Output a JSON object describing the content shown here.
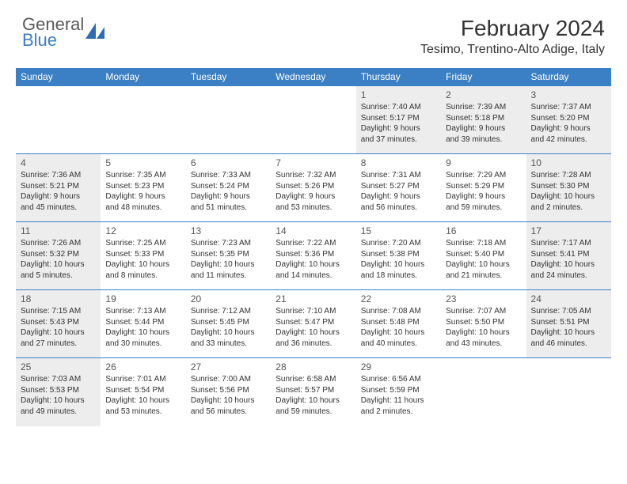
{
  "logo": {
    "line1": "General",
    "line2": "Blue",
    "icon_color": "#2f6db3"
  },
  "title": "February 2024",
  "location": "Tesimo, Trentino-Alto Adige, Italy",
  "theme": {
    "header_bg": "#3b7fc4",
    "gray_bg": "#ededed",
    "rule": "#3b7fc4"
  },
  "weekdays": [
    "Sunday",
    "Monday",
    "Tuesday",
    "Wednesday",
    "Thursday",
    "Friday",
    "Saturday"
  ],
  "weeks": [
    [
      null,
      null,
      null,
      null,
      {
        "n": "1",
        "gray": true,
        "sr": "Sunrise: 7:40 AM",
        "ss": "Sunset: 5:17 PM",
        "d1": "Daylight: 9 hours",
        "d2": "and 37 minutes."
      },
      {
        "n": "2",
        "gray": true,
        "sr": "Sunrise: 7:39 AM",
        "ss": "Sunset: 5:18 PM",
        "d1": "Daylight: 9 hours",
        "d2": "and 39 minutes."
      },
      {
        "n": "3",
        "gray": true,
        "sr": "Sunrise: 7:37 AM",
        "ss": "Sunset: 5:20 PM",
        "d1": "Daylight: 9 hours",
        "d2": "and 42 minutes."
      }
    ],
    [
      {
        "n": "4",
        "gray": true,
        "sr": "Sunrise: 7:36 AM",
        "ss": "Sunset: 5:21 PM",
        "d1": "Daylight: 9 hours",
        "d2": "and 45 minutes."
      },
      {
        "n": "5",
        "sr": "Sunrise: 7:35 AM",
        "ss": "Sunset: 5:23 PM",
        "d1": "Daylight: 9 hours",
        "d2": "and 48 minutes."
      },
      {
        "n": "6",
        "sr": "Sunrise: 7:33 AM",
        "ss": "Sunset: 5:24 PM",
        "d1": "Daylight: 9 hours",
        "d2": "and 51 minutes."
      },
      {
        "n": "7",
        "sr": "Sunrise: 7:32 AM",
        "ss": "Sunset: 5:26 PM",
        "d1": "Daylight: 9 hours",
        "d2": "and 53 minutes."
      },
      {
        "n": "8",
        "sr": "Sunrise: 7:31 AM",
        "ss": "Sunset: 5:27 PM",
        "d1": "Daylight: 9 hours",
        "d2": "and 56 minutes."
      },
      {
        "n": "9",
        "sr": "Sunrise: 7:29 AM",
        "ss": "Sunset: 5:29 PM",
        "d1": "Daylight: 9 hours",
        "d2": "and 59 minutes."
      },
      {
        "n": "10",
        "gray": true,
        "sr": "Sunrise: 7:28 AM",
        "ss": "Sunset: 5:30 PM",
        "d1": "Daylight: 10 hours",
        "d2": "and 2 minutes."
      }
    ],
    [
      {
        "n": "11",
        "gray": true,
        "sr": "Sunrise: 7:26 AM",
        "ss": "Sunset: 5:32 PM",
        "d1": "Daylight: 10 hours",
        "d2": "and 5 minutes."
      },
      {
        "n": "12",
        "sr": "Sunrise: 7:25 AM",
        "ss": "Sunset: 5:33 PM",
        "d1": "Daylight: 10 hours",
        "d2": "and 8 minutes."
      },
      {
        "n": "13",
        "sr": "Sunrise: 7:23 AM",
        "ss": "Sunset: 5:35 PM",
        "d1": "Daylight: 10 hours",
        "d2": "and 11 minutes."
      },
      {
        "n": "14",
        "sr": "Sunrise: 7:22 AM",
        "ss": "Sunset: 5:36 PM",
        "d1": "Daylight: 10 hours",
        "d2": "and 14 minutes."
      },
      {
        "n": "15",
        "sr": "Sunrise: 7:20 AM",
        "ss": "Sunset: 5:38 PM",
        "d1": "Daylight: 10 hours",
        "d2": "and 18 minutes."
      },
      {
        "n": "16",
        "sr": "Sunrise: 7:18 AM",
        "ss": "Sunset: 5:40 PM",
        "d1": "Daylight: 10 hours",
        "d2": "and 21 minutes."
      },
      {
        "n": "17",
        "gray": true,
        "sr": "Sunrise: 7:17 AM",
        "ss": "Sunset: 5:41 PM",
        "d1": "Daylight: 10 hours",
        "d2": "and 24 minutes."
      }
    ],
    [
      {
        "n": "18",
        "gray": true,
        "sr": "Sunrise: 7:15 AM",
        "ss": "Sunset: 5:43 PM",
        "d1": "Daylight: 10 hours",
        "d2": "and 27 minutes."
      },
      {
        "n": "19",
        "sr": "Sunrise: 7:13 AM",
        "ss": "Sunset: 5:44 PM",
        "d1": "Daylight: 10 hours",
        "d2": "and 30 minutes."
      },
      {
        "n": "20",
        "sr": "Sunrise: 7:12 AM",
        "ss": "Sunset: 5:45 PM",
        "d1": "Daylight: 10 hours",
        "d2": "and 33 minutes."
      },
      {
        "n": "21",
        "sr": "Sunrise: 7:10 AM",
        "ss": "Sunset: 5:47 PM",
        "d1": "Daylight: 10 hours",
        "d2": "and 36 minutes."
      },
      {
        "n": "22",
        "sr": "Sunrise: 7:08 AM",
        "ss": "Sunset: 5:48 PM",
        "d1": "Daylight: 10 hours",
        "d2": "and 40 minutes."
      },
      {
        "n": "23",
        "sr": "Sunrise: 7:07 AM",
        "ss": "Sunset: 5:50 PM",
        "d1": "Daylight: 10 hours",
        "d2": "and 43 minutes."
      },
      {
        "n": "24",
        "gray": true,
        "sr": "Sunrise: 7:05 AM",
        "ss": "Sunset: 5:51 PM",
        "d1": "Daylight: 10 hours",
        "d2": "and 46 minutes."
      }
    ],
    [
      {
        "n": "25",
        "gray": true,
        "sr": "Sunrise: 7:03 AM",
        "ss": "Sunset: 5:53 PM",
        "d1": "Daylight: 10 hours",
        "d2": "and 49 minutes."
      },
      {
        "n": "26",
        "sr": "Sunrise: 7:01 AM",
        "ss": "Sunset: 5:54 PM",
        "d1": "Daylight: 10 hours",
        "d2": "and 53 minutes."
      },
      {
        "n": "27",
        "sr": "Sunrise: 7:00 AM",
        "ss": "Sunset: 5:56 PM",
        "d1": "Daylight: 10 hours",
        "d2": "and 56 minutes."
      },
      {
        "n": "28",
        "sr": "Sunrise: 6:58 AM",
        "ss": "Sunset: 5:57 PM",
        "d1": "Daylight: 10 hours",
        "d2": "and 59 minutes."
      },
      {
        "n": "29",
        "sr": "Sunrise: 6:56 AM",
        "ss": "Sunset: 5:59 PM",
        "d1": "Daylight: 11 hours",
        "d2": "and 2 minutes."
      },
      null,
      null
    ]
  ]
}
